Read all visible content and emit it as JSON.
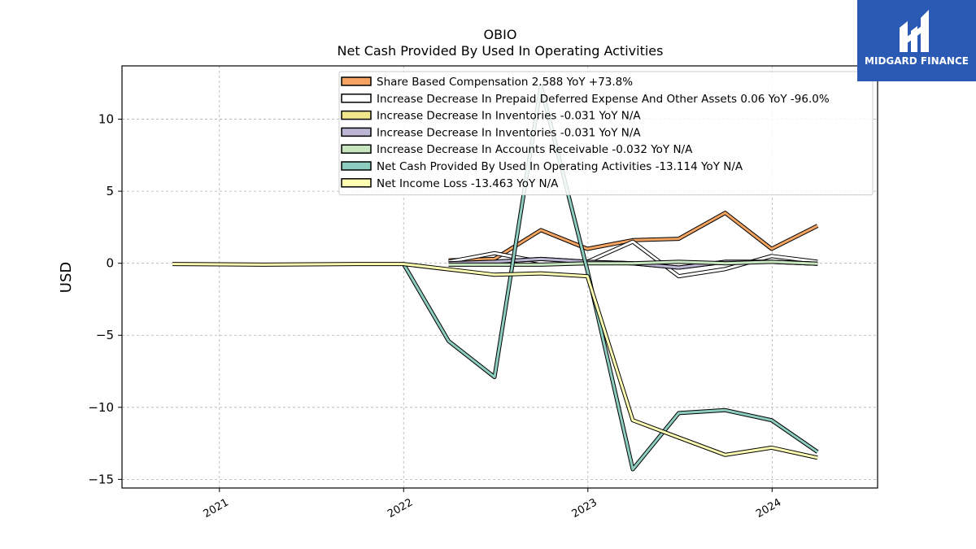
{
  "chart_data": {
    "type": "line",
    "title": "OBIO",
    "subtitle": "Net Cash Provided By Used In Operating Activities",
    "ylabel": "USD",
    "xlabel": "",
    "xlim": [
      "2020-06-22",
      "2024-07-28"
    ],
    "ylim": [
      -15.6,
      13.7
    ],
    "yticks": [
      10,
      5,
      0,
      -5,
      -10,
      -15
    ],
    "ytick_labels": [
      "10",
      "5",
      "0",
      "−5",
      "−10",
      "−15"
    ],
    "xticks": [
      "2021-01-01",
      "2022-01-01",
      "2023-01-01",
      "2024-01-01"
    ],
    "xtick_labels": [
      "2021",
      "2022",
      "2023",
      "2024"
    ],
    "grid": true,
    "legend_position": "top-right",
    "series": [
      {
        "name": "Share Based Compensation",
        "legend": "Share Based Compensation  2.588 YoY +73.8%",
        "color": "#f4a460",
        "x": [
          "2022-03-31",
          "2022-06-30",
          "2022-09-30",
          "2022-12-31",
          "2023-03-31",
          "2023-06-30",
          "2023-09-30",
          "2023-12-31",
          "2024-03-31"
        ],
        "y": [
          0.2,
          0.3,
          2.3,
          1.0,
          1.6,
          1.7,
          3.5,
          1.0,
          2.6
        ]
      },
      {
        "name": "Increase Decrease In Prepaid Deferred Expense And Other Assets",
        "legend": "Increase Decrease In Prepaid Deferred Expense And Other Assets  0.06 YoY -96.0%",
        "color": "#ffffff",
        "x": [
          "2022-03-31",
          "2022-06-30",
          "2022-09-30",
          "2022-12-31",
          "2023-03-31",
          "2023-06-30",
          "2023-09-30",
          "2023-12-31",
          "2024-03-31"
        ],
        "y": [
          0.1,
          0.7,
          0.1,
          0.1,
          1.5,
          -0.9,
          -0.4,
          0.5,
          0.1
        ]
      },
      {
        "name": "Increase Decrease In Inventories",
        "legend": "Increase Decrease In Inventories  -0.031 YoY N/A",
        "color": "#f0e68c",
        "x": [
          "2022-03-31",
          "2022-06-30",
          "2022-09-30",
          "2022-12-31",
          "2023-03-31",
          "2023-06-30",
          "2023-09-30",
          "2023-12-31",
          "2024-03-31"
        ],
        "y": [
          0.0,
          0.1,
          0.3,
          0.1,
          0.0,
          -0.3,
          0.1,
          0.1,
          -0.03
        ]
      },
      {
        "name": "Increase Decrease In Inventories",
        "legend": "Increase Decrease In Inventories  -0.031 YoY N/A",
        "color": "#bcb5d4",
        "x": [
          "2022-03-31",
          "2022-06-30",
          "2022-09-30",
          "2022-12-31",
          "2023-03-31",
          "2023-06-30",
          "2023-09-30",
          "2023-12-31",
          "2024-03-31"
        ],
        "y": [
          0.0,
          0.1,
          0.3,
          0.1,
          0.0,
          -0.3,
          0.1,
          0.1,
          -0.03
        ]
      },
      {
        "name": "Increase Decrease In Accounts Receivable",
        "legend": "Increase Decrease In Accounts Receivable  -0.032 YoY N/A",
        "color": "#c7e6c0",
        "x": [
          "2022-03-31",
          "2022-06-30",
          "2022-09-30",
          "2022-12-31",
          "2023-03-31",
          "2023-06-30",
          "2023-09-30",
          "2023-12-31",
          "2024-03-31"
        ],
        "y": [
          -0.1,
          -0.1,
          -0.1,
          0.0,
          0.0,
          0.1,
          0.0,
          0.1,
          -0.03
        ]
      },
      {
        "name": "Net Cash Provided By Used In Operating Activities",
        "legend": "Net Cash Provided By Used In Operating Activities  -13.114 YoY N/A",
        "color": "#8dcdbf",
        "x": [
          "2021-12-31",
          "2022-03-31",
          "2022-06-30",
          "2022-09-30",
          "2022-12-31",
          "2023-03-31",
          "2023-06-30",
          "2023-09-30",
          "2023-12-31",
          "2024-03-31"
        ],
        "y": [
          0.0,
          -5.4,
          -7.9,
          12.3,
          -0.5,
          -14.3,
          -10.4,
          -10.2,
          -10.9,
          -13.1
        ]
      },
      {
        "name": "Net Income Loss",
        "legend": "Net Income Loss  -13.463 YoY N/A",
        "color": "#ffffb3",
        "x": [
          "2020-09-30",
          "2021-03-31",
          "2021-09-30",
          "2021-12-31",
          "2022-06-30",
          "2022-09-30",
          "2022-12-31",
          "2023-03-31",
          "2023-06-30",
          "2023-09-30",
          "2023-12-31",
          "2024-03-31"
        ],
        "y": [
          -0.05,
          -0.1,
          -0.05,
          -0.05,
          -0.8,
          -0.7,
          -0.9,
          -10.9,
          -12.1,
          -13.3,
          -12.8,
          -13.5
        ]
      }
    ]
  },
  "branding": {
    "logo_text": "MIDGARD FINANCE",
    "logo_color": "#2a5ab3"
  }
}
